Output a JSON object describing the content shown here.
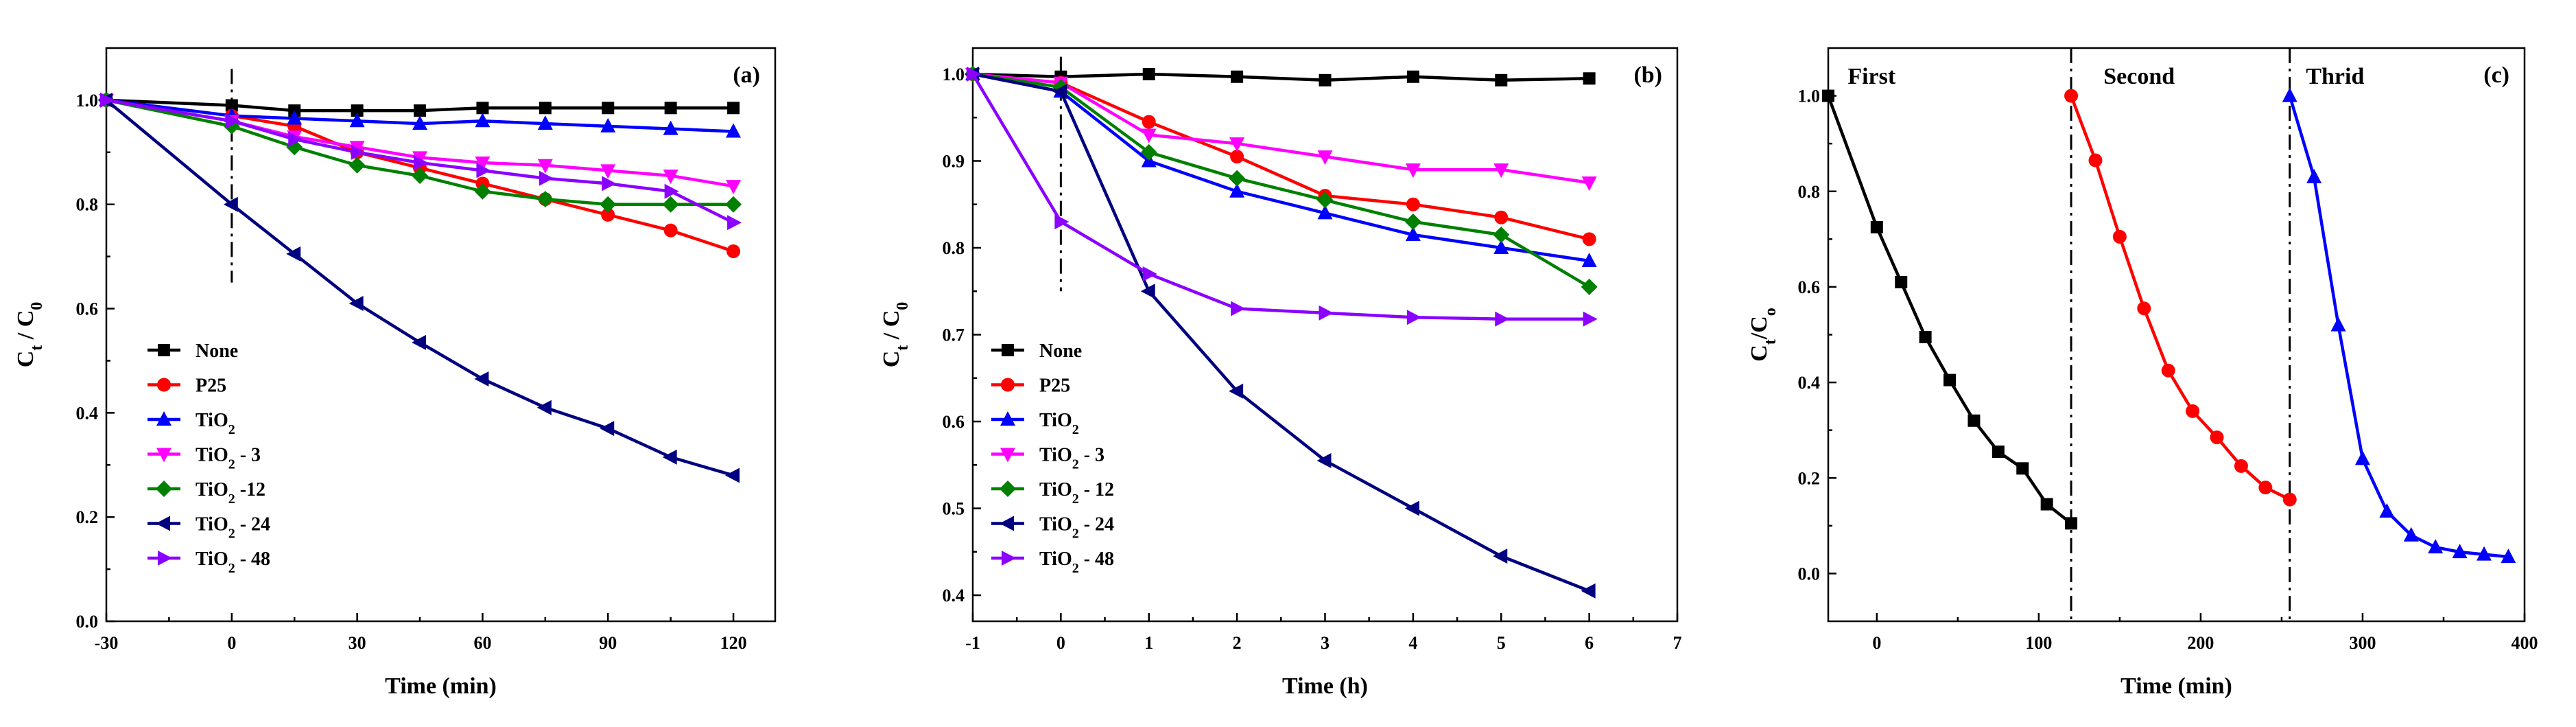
{
  "chart_data": [
    {
      "type": "line",
      "panel_label": "(a)",
      "xlabel": "Time (min)",
      "ylabel": "C_t / C_0",
      "xlim": [
        -30,
        130
      ],
      "ylim": [
        0,
        1.1
      ],
      "xticks": [
        -30,
        0,
        30,
        60,
        90,
        120
      ],
      "yticks": [
        0.0,
        0.2,
        0.4,
        0.6,
        0.8,
        1.0
      ],
      "xtick_labels": [
        "-30",
        "0",
        "30",
        "60",
        "90",
        "120"
      ],
      "ytick_labels": [
        "0.0",
        "0.2",
        "0.4",
        "0.6",
        "0.8",
        "1.0"
      ],
      "legend_position": "bottom-left",
      "divider": {
        "x": 0,
        "y_from": 0.65,
        "y_to": 1.06,
        "style": "dash-dot"
      },
      "series": [
        {
          "name": "None",
          "sub": "",
          "suffix": "",
          "color": "#000000",
          "marker": "square",
          "x": [
            -30,
            0,
            15,
            30,
            45,
            60,
            75,
            90,
            105,
            120
          ],
          "y": [
            1.0,
            0.99,
            0.98,
            0.98,
            0.98,
            0.985,
            0.985,
            0.985,
            0.985,
            0.985
          ]
        },
        {
          "name": "P25",
          "sub": "",
          "suffix": "",
          "color": "#ff0000",
          "marker": "circle",
          "x": [
            -30,
            0,
            15,
            30,
            45,
            60,
            75,
            90,
            105,
            120
          ],
          "y": [
            1.0,
            0.97,
            0.95,
            0.9,
            0.87,
            0.84,
            0.81,
            0.78,
            0.75,
            0.71
          ]
        },
        {
          "name": "TiO",
          "sub": "2",
          "suffix": "",
          "color": "#0000ff",
          "marker": "triangle-up",
          "x": [
            -30,
            0,
            15,
            30,
            45,
            60,
            75,
            90,
            105,
            120
          ],
          "y": [
            1.0,
            0.97,
            0.965,
            0.96,
            0.955,
            0.96,
            0.955,
            0.95,
            0.945,
            0.94
          ]
        },
        {
          "name": "TiO",
          "sub": "2",
          "suffix": " - 3",
          "color": "#ff00ff",
          "marker": "triangle-down",
          "x": [
            -30,
            0,
            15,
            30,
            45,
            60,
            75,
            90,
            105,
            120
          ],
          "y": [
            1.0,
            0.96,
            0.93,
            0.91,
            0.89,
            0.88,
            0.875,
            0.865,
            0.855,
            0.835
          ]
        },
        {
          "name": "TiO",
          "sub": "2",
          "suffix": " -12",
          "color": "#008000",
          "marker": "diamond",
          "x": [
            -30,
            0,
            15,
            30,
            45,
            60,
            75,
            90,
            105,
            120
          ],
          "y": [
            1.0,
            0.95,
            0.91,
            0.875,
            0.855,
            0.825,
            0.81,
            0.8,
            0.8,
            0.8
          ]
        },
        {
          "name": "TiO",
          "sub": "2",
          "suffix": " - 24",
          "color": "#000080",
          "marker": "triangle-left",
          "x": [
            -30,
            0,
            15,
            30,
            45,
            60,
            75,
            90,
            105,
            120
          ],
          "y": [
            1.0,
            0.8,
            0.705,
            0.61,
            0.535,
            0.465,
            0.41,
            0.37,
            0.315,
            0.28
          ]
        },
        {
          "name": "TiO",
          "sub": "2",
          "suffix": " - 48",
          "color": "#8b00ff",
          "marker": "triangle-right",
          "x": [
            -30,
            0,
            15,
            30,
            45,
            60,
            75,
            90,
            105,
            120
          ],
          "y": [
            1.0,
            0.96,
            0.925,
            0.9,
            0.88,
            0.865,
            0.85,
            0.84,
            0.825,
            0.765
          ]
        }
      ]
    },
    {
      "type": "line",
      "panel_label": "(b)",
      "xlabel": "Time (h)",
      "ylabel": "C_t / C_0",
      "xlim": [
        -1,
        7
      ],
      "ylim": [
        0.37,
        1.03
      ],
      "xticks": [
        -1,
        0,
        1,
        2,
        3,
        4,
        5,
        6,
        7
      ],
      "yticks": [
        0.4,
        0.5,
        0.6,
        0.7,
        0.8,
        0.9,
        1.0
      ],
      "xtick_labels": [
        "-1",
        "0",
        "1",
        "2",
        "3",
        "4",
        "5",
        "6",
        "7"
      ],
      "ytick_labels": [
        "0.4",
        "0.5",
        "0.6",
        "0.7",
        "0.8",
        "0.9",
        "1.0"
      ],
      "legend_position": "bottom-left",
      "divider": {
        "x": 0,
        "y_from": 0.75,
        "y_to": 1.02,
        "style": "dash-dot"
      },
      "series": [
        {
          "name": "None",
          "sub": "",
          "suffix": "",
          "color": "#000000",
          "marker": "square",
          "x": [
            -1,
            0,
            1,
            2,
            3,
            4,
            5,
            6
          ],
          "y": [
            1.0,
            0.997,
            1.0,
            0.997,
            0.993,
            0.997,
            0.993,
            0.995
          ]
        },
        {
          "name": "P25",
          "sub": "",
          "suffix": "",
          "color": "#ff0000",
          "marker": "circle",
          "x": [
            -1,
            0,
            1,
            2,
            3,
            4,
            5,
            6
          ],
          "y": [
            1.0,
            0.99,
            0.945,
            0.905,
            0.86,
            0.85,
            0.835,
            0.81
          ]
        },
        {
          "name": "TiO",
          "sub": "2",
          "suffix": "",
          "color": "#0000ff",
          "marker": "triangle-up",
          "x": [
            -1,
            0,
            1,
            2,
            3,
            4,
            5,
            6
          ],
          "y": [
            1.0,
            0.98,
            0.9,
            0.865,
            0.84,
            0.815,
            0.8,
            0.785
          ]
        },
        {
          "name": "TiO",
          "sub": "2",
          "suffix": " - 3",
          "color": "#ff00ff",
          "marker": "triangle-down",
          "x": [
            -1,
            0,
            1,
            2,
            3,
            4,
            5,
            6
          ],
          "y": [
            1.0,
            0.99,
            0.93,
            0.92,
            0.905,
            0.89,
            0.89,
            0.875
          ]
        },
        {
          "name": "TiO",
          "sub": "2",
          "suffix": " - 12",
          "color": "#008000",
          "marker": "diamond",
          "x": [
            -1,
            0,
            1,
            2,
            3,
            4,
            5,
            6
          ],
          "y": [
            1.0,
            0.985,
            0.91,
            0.88,
            0.855,
            0.83,
            0.815,
            0.755
          ]
        },
        {
          "name": "TiO",
          "sub": "2",
          "suffix": " - 24",
          "color": "#000080",
          "marker": "triangle-left",
          "x": [
            -1,
            0,
            1,
            2,
            3,
            4,
            5,
            6
          ],
          "y": [
            1.0,
            0.98,
            0.75,
            0.635,
            0.555,
            0.5,
            0.445,
            0.405
          ]
        },
        {
          "name": "TiO",
          "sub": "2",
          "suffix": " - 48",
          "color": "#8b00ff",
          "marker": "triangle-right",
          "x": [
            -1,
            0,
            1,
            2,
            3,
            4,
            5,
            6
          ],
          "y": [
            1.0,
            0.83,
            0.77,
            0.73,
            0.725,
            0.72,
            0.718,
            0.718
          ]
        }
      ]
    },
    {
      "type": "line",
      "panel_label": "(c)",
      "xlabel": "Time (min)",
      "ylabel": "C_t/C_o",
      "xlim": [
        -30,
        400
      ],
      "ylim": [
        -0.1,
        1.1
      ],
      "xticks": [
        0,
        100,
        200,
        300,
        400
      ],
      "yticks": [
        0.0,
        0.2,
        0.4,
        0.6,
        0.8,
        1.0
      ],
      "xtick_labels": [
        "0",
        "100",
        "200",
        "300",
        "400"
      ],
      "ytick_labels": [
        "0.0",
        "0.2",
        "0.4",
        "0.6",
        "0.8",
        "1.0"
      ],
      "dividers": [
        120,
        255
      ],
      "segment_labels": [
        {
          "text": "First",
          "x": -18
        },
        {
          "text": "Second",
          "x": 140
        },
        {
          "text": "Thrid",
          "x": 265
        }
      ],
      "series": [
        {
          "name": "First",
          "color": "#000000",
          "marker": "square",
          "x": [
            -30,
            0,
            15,
            30,
            45,
            60,
            75,
            90,
            105,
            120
          ],
          "y": [
            1.0,
            0.725,
            0.61,
            0.495,
            0.405,
            0.32,
            0.255,
            0.22,
            0.145,
            0.105
          ]
        },
        {
          "name": "Second",
          "color": "#ff0000",
          "marker": "circle",
          "x": [
            120,
            135,
            150,
            165,
            180,
            195,
            210,
            225,
            240,
            255
          ],
          "y": [
            1.0,
            0.865,
            0.705,
            0.555,
            0.425,
            0.34,
            0.285,
            0.225,
            0.18,
            0.155
          ]
        },
        {
          "name": "Thrid",
          "color": "#0000ff",
          "marker": "triangle-up",
          "x": [
            255,
            270,
            285,
            300,
            315,
            330,
            345,
            360,
            375,
            390
          ],
          "y": [
            1.0,
            0.83,
            0.52,
            0.24,
            0.13,
            0.08,
            0.055,
            0.045,
            0.04,
            0.035
          ]
        }
      ]
    }
  ]
}
